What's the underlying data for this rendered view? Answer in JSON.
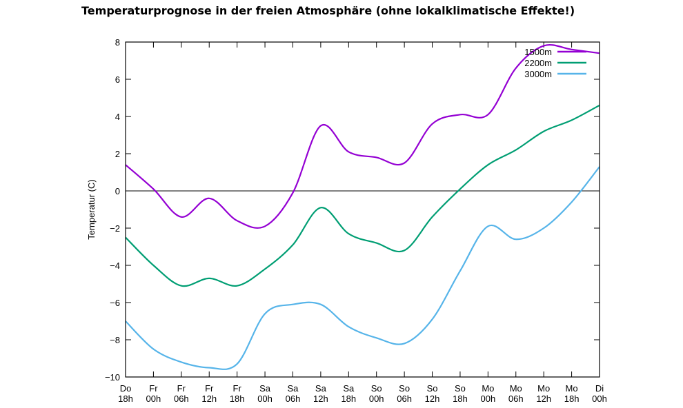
{
  "chart_data": {
    "type": "line",
    "title": "Temperaturprognose in der freien Atmosphäre (ohne lokalklimatische Effekte!)",
    "xlabel": "",
    "ylabel": "Temperatur (C)",
    "ylim": [
      -10,
      8
    ],
    "yticks": [
      -10,
      -8,
      -6,
      -4,
      -2,
      0,
      2,
      4,
      6,
      8
    ],
    "grid": false,
    "legend": "top-right",
    "categories": [
      [
        "Do",
        "18h"
      ],
      [
        "Fr",
        "00h"
      ],
      [
        "Fr",
        "06h"
      ],
      [
        "Fr",
        "12h"
      ],
      [
        "Fr",
        "18h"
      ],
      [
        "Sa",
        "00h"
      ],
      [
        "Sa",
        "06h"
      ],
      [
        "Sa",
        "12h"
      ],
      [
        "Sa",
        "18h"
      ],
      [
        "So",
        "00h"
      ],
      [
        "So",
        "06h"
      ],
      [
        "So",
        "12h"
      ],
      [
        "So",
        "18h"
      ],
      [
        "Mo",
        "00h"
      ],
      [
        "Mo",
        "06h"
      ],
      [
        "Mo",
        "12h"
      ],
      [
        "Mo",
        "18h"
      ],
      [
        "Di",
        "00h"
      ]
    ],
    "series": [
      {
        "name": "1500m",
        "color": "#9400d3",
        "values": [
          1.4,
          0.1,
          -1.4,
          -0.4,
          -1.6,
          -1.9,
          -0.1,
          3.5,
          2.1,
          1.8,
          1.5,
          3.6,
          4.1,
          4.1,
          6.6,
          7.8,
          7.6,
          7.4
        ]
      },
      {
        "name": "2200m",
        "color": "#009e73",
        "values": [
          -2.5,
          -4.0,
          -5.1,
          -4.7,
          -5.1,
          -4.2,
          -2.9,
          -0.9,
          -2.3,
          -2.8,
          -3.2,
          -1.4,
          0.1,
          1.4,
          2.2,
          3.2,
          3.8,
          4.6
        ]
      },
      {
        "name": "3000m",
        "color": "#56b4e9",
        "values": [
          -7.0,
          -8.5,
          -9.2,
          -9.5,
          -9.3,
          -6.6,
          -6.1,
          -6.1,
          -7.3,
          -7.9,
          -8.2,
          -6.9,
          -4.3,
          -1.9,
          -2.6,
          -2.0,
          -0.6,
          1.3
        ]
      }
    ]
  }
}
